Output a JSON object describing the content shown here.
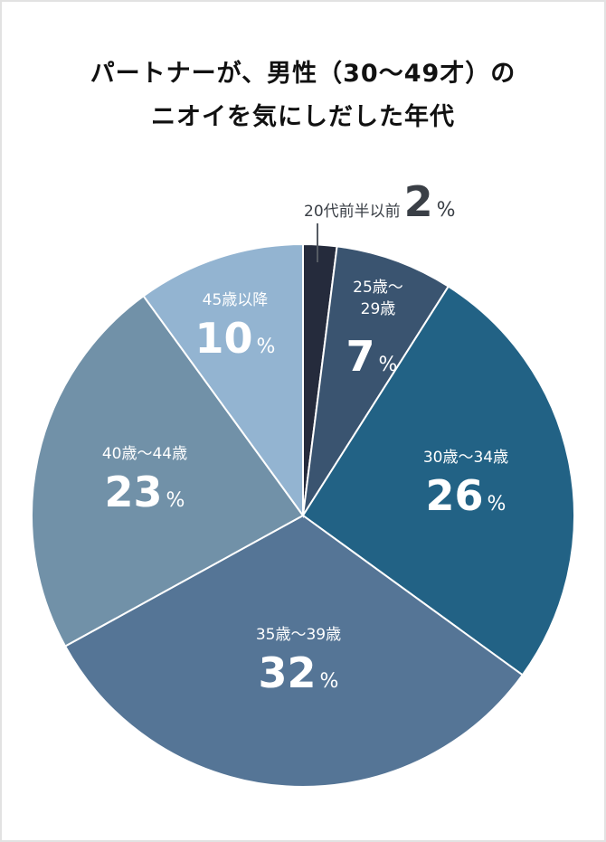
{
  "title": {
    "line1": "パートナーが、男性（30〜49才）の",
    "line2": "ニオイを気にしだした年代"
  },
  "chart_data": {
    "type": "pie",
    "title": "パートナーが、男性（30〜49才）のニオイを気にしだした年代",
    "start_angle": "12 o'clock, clockwise",
    "categories": [
      "20代前半以前",
      "25歳〜29歳",
      "30歳〜34歳",
      "35歳〜39歳",
      "40歳〜44歳",
      "45歳以降"
    ],
    "values": [
      2,
      7,
      26,
      32,
      23,
      10
    ],
    "unit": "%",
    "colors": [
      "#252b3c",
      "#3a5470",
      "#226285",
      "#557596",
      "#7191a8",
      "#93b4d1"
    ]
  },
  "labels": {
    "s0": {
      "cat": "20代前半以前",
      "val": "2",
      "pct": "%"
    },
    "s1": {
      "cat1": "25歳〜",
      "cat2": "29歳",
      "val": "7",
      "pct": "%"
    },
    "s2": {
      "cat": "30歳〜34歳",
      "val": "26",
      "pct": "%"
    },
    "s3": {
      "cat": "35歳〜39歳",
      "val": "32",
      "pct": "%"
    },
    "s4": {
      "cat": "40歳〜44歳",
      "val": "23",
      "pct": "%"
    },
    "s5": {
      "cat": "45歳以降",
      "val": "10",
      "pct": "%"
    }
  }
}
